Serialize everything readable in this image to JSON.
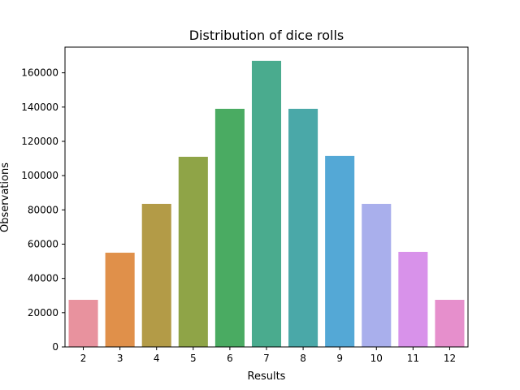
{
  "chart_data": {
    "type": "bar",
    "title": "Distribution of dice rolls",
    "xlabel": "Results",
    "ylabel": "Observations",
    "categories": [
      "2",
      "3",
      "4",
      "5",
      "6",
      "7",
      "8",
      "9",
      "10",
      "11",
      "12"
    ],
    "values": [
      27500,
      55000,
      83500,
      111000,
      139000,
      167000,
      139000,
      111500,
      83500,
      55500,
      27500
    ],
    "ylim": [
      0,
      175000
    ],
    "yticks": [
      0,
      20000,
      40000,
      60000,
      80000,
      100000,
      120000,
      140000,
      160000
    ],
    "ytick_labels": [
      "0",
      "20000",
      "40000",
      "60000",
      "80000",
      "100000",
      "120000",
      "140000",
      "160000"
    ],
    "grid": false,
    "legend": "none",
    "colors": [
      "#e8929e",
      "#e0904a",
      "#b39b47",
      "#8fa447",
      "#4aab62",
      "#4aab8e",
      "#4aa8a8",
      "#54a8d6",
      "#a9afec",
      "#d892ea",
      "#e68fcc"
    ]
  }
}
